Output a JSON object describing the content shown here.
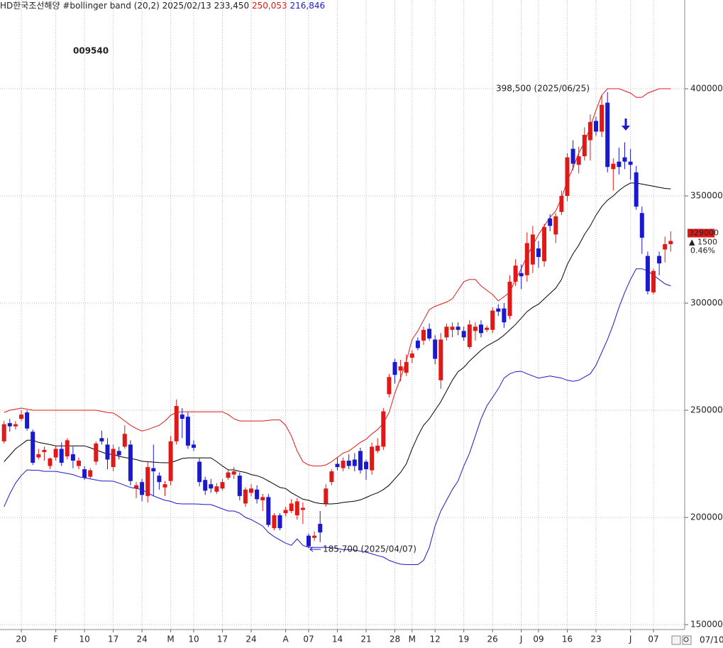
{
  "chart_data": {
    "type": "candlestick",
    "header": {
      "text": "HD한국조선해양 #bollinger band  (20,2) 2025/02/13 233,450",
      "upper": "250,053",
      "lower": "216,846",
      "upper_color": "#e01818",
      "lower_color": "#1a1acc"
    },
    "code": "009540",
    "last_date": "07/10",
    "price_box": {
      "price": "329000",
      "change": "▲ 1500",
      "change_pct": "0.46%",
      "color": "#e01818"
    },
    "annotations": [
      {
        "text": "398,500 (2025/06/25)",
        "color": "#d01818"
      },
      {
        "text": "185,700 (2025/04/07)",
        "color": "#1a1acc"
      }
    ],
    "up_color": "#e01818",
    "down_color": "#1a1acc",
    "grid": true,
    "ylim": [
      147700,
      441400
    ],
    "yticks": [
      150000,
      200000,
      250000,
      300000,
      350000,
      400000
    ],
    "categories": [
      null,
      null,
      null,
      "20",
      null,
      null,
      null,
      null,
      null,
      "F",
      null,
      null,
      null,
      null,
      "10",
      null,
      null,
      null,
      null,
      "17",
      null,
      null,
      null,
      null,
      "24",
      null,
      null,
      null,
      null,
      "M",
      null,
      null,
      null,
      "10",
      null,
      null,
      null,
      null,
      "17",
      null,
      null,
      null,
      null,
      "24",
      null,
      null,
      null,
      null,
      null,
      "A",
      null,
      null,
      null,
      "07",
      null,
      null,
      null,
      null,
      "14",
      null,
      null,
      null,
      null,
      "21",
      null,
      null,
      null,
      null,
      "28",
      null,
      null,
      "M",
      null,
      null,
      null,
      "12",
      null,
      null,
      null,
      null,
      "19",
      null,
      null,
      null,
      null,
      "26",
      null,
      null,
      null,
      null,
      "J",
      null,
      null,
      "09",
      null,
      null,
      null,
      null,
      "16",
      null,
      null,
      null,
      null,
      "23",
      null,
      null,
      null,
      null,
      null,
      "J",
      null,
      null,
      null,
      "07",
      null,
      null,
      null
    ],
    "open": [
      235500,
      244000,
      242500,
      246000,
      249000,
      240000,
      228000,
      230500,
      224000,
      228000,
      232000,
      228500,
      229500,
      224000,
      222500,
      219000,
      226000,
      237000,
      234000,
      223500,
      231000,
      233000,
      234000,
      213500,
      216500,
      210000,
      223000,
      219500,
      214000,
      217000,
      235500,
      248000,
      247000,
      234000,
      226000,
      217500,
      215500,
      212000,
      213500,
      218500,
      220000,
      219500,
      206500,
      211500,
      213000,
      208000,
      209500,
      195000,
      201000,
      202000,
      203000,
      201000,
      203500,
      191500,
      190500,
      197000,
      206500,
      216500,
      225000,
      223000,
      226500,
      227000,
      231000,
      226000,
      222000,
      231000,
      233000,
      257500,
      272500,
      268500,
      267500,
      274500,
      282500,
      282500,
      288000,
      283000,
      264000,
      284000,
      287500,
      289000,
      287000,
      279500,
      287000,
      290000,
      287500,
      287500,
      297500,
      297500,
      294000,
      310000,
      314000,
      313000,
      318000,
      325500,
      319500,
      339500,
      332000,
      342500,
      350000,
      372000,
      364500,
      368500,
      376000,
      385000,
      380000,
      393500,
      362500,
      366000,
      368000,
      366000,
      361000,
      342000,
      322000,
      305000,
      322000,
      325000,
      327500
    ],
    "high": [
      245000,
      246000,
      245000,
      250000,
      250000,
      241000,
      232000,
      233000,
      228000,
      233500,
      235000,
      237000,
      233000,
      228000,
      224000,
      223000,
      235500,
      240500,
      237000,
      234000,
      233000,
      243000,
      236000,
      216500,
      218000,
      226000,
      234000,
      221000,
      217000,
      238000,
      255000,
      251000,
      249000,
      236000,
      227500,
      219000,
      218000,
      216000,
      218000,
      222000,
      223500,
      221000,
      214000,
      215500,
      215000,
      211000,
      211000,
      202000,
      202000,
      205000,
      208500,
      209000,
      207000,
      192500,
      193500,
      203000,
      215500,
      222500,
      228000,
      228000,
      229500,
      230000,
      232500,
      227000,
      235000,
      237000,
      251000,
      267000,
      274000,
      273500,
      276000,
      278000,
      284000,
      289000,
      290500,
      285000,
      286000,
      290500,
      291000,
      291000,
      289000,
      292000,
      291000,
      292000,
      289500,
      298000,
      299500,
      300000,
      313000,
      320500,
      318000,
      333000,
      336000,
      329000,
      337000,
      341500,
      342000,
      352500,
      370000,
      376000,
      373000,
      382000,
      388000,
      387000,
      397000,
      398500,
      367500,
      372500,
      375000,
      372000,
      364000,
      345000,
      324000,
      316000,
      324000,
      331000,
      333500
    ],
    "low": [
      234500,
      240000,
      241000,
      245000,
      240500,
      224500,
      227000,
      226500,
      222500,
      226500,
      224000,
      227000,
      223000,
      222500,
      217500,
      218000,
      224500,
      234000,
      222500,
      221500,
      227000,
      232000,
      215000,
      209000,
      207500,
      207000,
      210000,
      213000,
      210000,
      215000,
      234000,
      237000,
      232000,
      231000,
      214500,
      210500,
      211500,
      211000,
      212500,
      217500,
      218000,
      208000,
      205000,
      210000,
      206500,
      203000,
      195500,
      194000,
      194000,
      200500,
      202000,
      199000,
      197000,
      185700,
      189000,
      188500,
      205000,
      215000,
      222000,
      221500,
      222500,
      221500,
      220500,
      217500,
      220000,
      230000,
      231500,
      256000,
      262500,
      263500,
      266000,
      272000,
      278000,
      280500,
      282500,
      271500,
      260000,
      282500,
      284000,
      285000,
      282500,
      278500,
      282500,
      284000,
      286500,
      286000,
      294000,
      288500,
      292500,
      308000,
      306500,
      310000,
      314000,
      316500,
      317000,
      333500,
      328000,
      341000,
      347500,
      362000,
      360500,
      366500,
      366500,
      378000,
      377500,
      361000,
      352500,
      360000,
      362500,
      357500,
      343500,
      323000,
      304000,
      304000,
      313000,
      319000,
      324000
    ],
    "close": [
      243500,
      242500,
      243500,
      248000,
      241500,
      225500,
      229500,
      231500,
      227500,
      232000,
      225500,
      236000,
      226500,
      226500,
      218500,
      222000,
      234500,
      235500,
      227000,
      232000,
      229000,
      239000,
      217000,
      215000,
      210500,
      223500,
      221500,
      216500,
      215500,
      235500,
      252000,
      246000,
      233500,
      232500,
      216500,
      212500,
      213500,
      214500,
      216500,
      221000,
      221500,
      210000,
      213000,
      213500,
      208500,
      209500,
      196500,
      201000,
      195000,
      203500,
      206500,
      207500,
      204500,
      186500,
      191500,
      193000,
      213500,
      221500,
      223500,
      226500,
      224000,
      224000,
      222000,
      222500,
      233000,
      233500,
      249500,
      265500,
      266500,
      270500,
      272500,
      276500,
      279000,
      287500,
      283500,
      274000,
      283000,
      289000,
      289000,
      287500,
      284000,
      290000,
      289000,
      286000,
      288500,
      296500,
      296000,
      291000,
      310000,
      317500,
      312500,
      328000,
      332000,
      321500,
      335500,
      336000,
      340500,
      350000,
      368000,
      365000,
      368500,
      378500,
      384500,
      380000,
      392500,
      363500,
      365000,
      363500,
      366000,
      364500,
      345000,
      330500,
      305500,
      315000,
      318500,
      327500,
      329000
    ],
    "lines": [
      {
        "color": "#e01818",
        "values": [
          249000,
          250000,
          250500,
          251000,
          250500,
          250000,
          250000,
          250000,
          250000,
          250000,
          250000,
          250000,
          250000,
          250000,
          250000,
          250000,
          250000,
          249500,
          249000,
          248700,
          247000,
          245000,
          243000,
          241500,
          240300,
          241000,
          242000,
          243000,
          245000,
          247700,
          249000,
          249300,
          249300,
          249300,
          249300,
          249300,
          249300,
          249300,
          249300,
          248000,
          246000,
          245000,
          245000,
          245000,
          245000,
          245000,
          245300,
          245500,
          245500,
          243000,
          238000,
          231000,
          226000,
          224500,
          224000,
          224000,
          224500,
          226000,
          228000,
          230000,
          231000,
          233000,
          235000,
          236500,
          239000,
          241000,
          244000,
          249000,
          258000,
          265000,
          273000,
          283000,
          287000,
          292000,
          297000,
          298500,
          299500,
          300500,
          302000,
          306000,
          310000,
          311000,
          311000,
          308000,
          306000,
          304000,
          301000,
          303000,
          305000,
          311000,
          316000,
          322000,
          327000,
          332000,
          336000,
          340000,
          343000,
          349000,
          357000,
          363000,
          370000,
          375000,
          382000,
          390000,
          397000,
          400000,
          400000,
          400000,
          399000,
          398000,
          396000,
          396000,
          398000,
          399000,
          400000,
          400000,
          400000
        ]
      },
      {
        "color": "#000000",
        "values": [
          226000,
          229000,
          232000,
          234000,
          236000,
          236000,
          235000,
          234500,
          234000,
          233400,
          233400,
          233400,
          233400,
          233400,
          233400,
          232500,
          231500,
          230500,
          229500,
          229500,
          228500,
          228000,
          227500,
          227000,
          226200,
          226000,
          225800,
          225600,
          225500,
          225500,
          226500,
          227500,
          227800,
          227800,
          227800,
          227800,
          227800,
          226000,
          224000,
          222200,
          222200,
          221500,
          221000,
          220000,
          219500,
          218500,
          217000,
          215500,
          214000,
          213500,
          211500,
          210000,
          208500,
          208000,
          207000,
          206500,
          206300,
          206300,
          206500,
          207000,
          207300,
          207600,
          208200,
          209300,
          210500,
          211500,
          213000,
          215000,
          218000,
          221000,
          225000,
          232000,
          238000,
          243000,
          246000,
          250000,
          254000,
          259000,
          264000,
          268000,
          270000,
          273000,
          275500,
          278000,
          280000,
          281500,
          283000,
          285000,
          287500,
          290000,
          293000,
          296000,
          298000,
          299500,
          302000,
          304500,
          307000,
          311000,
          318000,
          323000,
          327000,
          332000,
          336000,
          341000,
          345000,
          348000,
          350000,
          352500,
          354500,
          356000,
          356000,
          355500,
          355000,
          354500,
          354000,
          353500,
          353300
        ]
      },
      {
        "color": "#1a1acc",
        "values": [
          205000,
          211000,
          216000,
          219600,
          222200,
          222000,
          222000,
          221500,
          221500,
          221500,
          221000,
          220500,
          220000,
          219000,
          218500,
          218000,
          217500,
          217000,
          217000,
          216900,
          216000,
          215000,
          214000,
          213500,
          213000,
          211500,
          210000,
          209000,
          208000,
          207500,
          206500,
          206300,
          206300,
          206300,
          206200,
          206000,
          206000,
          205000,
          204000,
          203000,
          203000,
          202000,
          200000,
          199000,
          197500,
          196000,
          193000,
          191000,
          189500,
          188000,
          187000,
          190000,
          187000,
          186000,
          186000,
          186000,
          186000,
          185800,
          185500,
          185000,
          185000,
          184800,
          184300,
          183800,
          183000,
          182200,
          181500,
          180000,
          179000,
          178200,
          178000,
          178000,
          178000,
          180000,
          186000,
          196000,
          203000,
          208000,
          213000,
          217000,
          224000,
          230000,
          238000,
          246000,
          252000,
          256000,
          260000,
          265000,
          267000,
          268000,
          268200,
          267000,
          266000,
          265000,
          265500,
          266000,
          265500,
          265000,
          264000,
          263500,
          264000,
          265500,
          267000,
          271000,
          277000,
          283000,
          290000,
          298000,
          305000,
          311000,
          316000,
          316000,
          315000,
          313000,
          311000,
          309000,
          308000
        ]
      }
    ]
  }
}
